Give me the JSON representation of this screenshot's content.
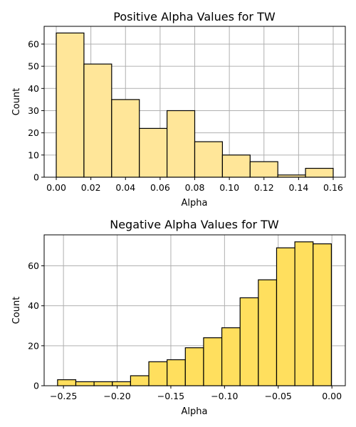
{
  "chart_data": [
    {
      "type": "bar",
      "title": "Positive Alpha Values for TW",
      "xlabel": "Alpha",
      "ylabel": "Count",
      "xlim": [
        -0.007,
        0.167
      ],
      "ylim": [
        0,
        68
      ],
      "xticks": [
        0.0,
        0.02,
        0.04,
        0.06,
        0.08,
        0.1,
        0.12,
        0.14,
        0.16
      ],
      "xtick_labels": [
        "0.00",
        "0.02",
        "0.04",
        "0.06",
        "0.08",
        "0.10",
        "0.12",
        "0.14",
        "0.16"
      ],
      "yticks": [
        0,
        10,
        20,
        30,
        40,
        50,
        60
      ],
      "ytick_labels": [
        "0",
        "10",
        "20",
        "30",
        "40",
        "50",
        "60"
      ],
      "grid": true,
      "bar_color": "#ffe699",
      "bins": [
        {
          "x0": 0.0,
          "x1": 0.016,
          "count": 65
        },
        {
          "x0": 0.016,
          "x1": 0.032,
          "count": 51
        },
        {
          "x0": 0.032,
          "x1": 0.048,
          "count": 35
        },
        {
          "x0": 0.048,
          "x1": 0.064,
          "count": 22
        },
        {
          "x0": 0.064,
          "x1": 0.08,
          "count": 30
        },
        {
          "x0": 0.08,
          "x1": 0.096,
          "count": 16
        },
        {
          "x0": 0.096,
          "x1": 0.112,
          "count": 10
        },
        {
          "x0": 0.112,
          "x1": 0.128,
          "count": 7
        },
        {
          "x0": 0.128,
          "x1": 0.144,
          "count": 1
        },
        {
          "x0": 0.144,
          "x1": 0.16,
          "count": 4
        }
      ]
    },
    {
      "type": "bar",
      "title": "Negative Alpha Values for TW",
      "xlabel": "Alpha",
      "ylabel": "Count",
      "xlim": [
        -0.268,
        0.0125
      ],
      "ylim": [
        0,
        75.5
      ],
      "xticks": [
        -0.25,
        -0.2,
        -0.15,
        -0.1,
        -0.05,
        0.0
      ],
      "xtick_labels": [
        "−0.25",
        "−0.20",
        "−0.15",
        "−0.10",
        "−0.05",
        "0.00"
      ],
      "yticks": [
        0,
        20,
        40,
        60
      ],
      "ytick_labels": [
        "0",
        "20",
        "40",
        "60"
      ],
      "grid": true,
      "bar_color": "#ffdf5e",
      "bins": [
        {
          "x0": -0.2555,
          "x1": -0.2385,
          "count": 3
        },
        {
          "x0": -0.2385,
          "x1": -0.2215,
          "count": 2
        },
        {
          "x0": -0.2215,
          "x1": -0.2045,
          "count": 2
        },
        {
          "x0": -0.2045,
          "x1": -0.1875,
          "count": 2
        },
        {
          "x0": -0.1875,
          "x1": -0.1705,
          "count": 5
        },
        {
          "x0": -0.1705,
          "x1": -0.1535,
          "count": 12
        },
        {
          "x0": -0.1535,
          "x1": -0.1365,
          "count": 13
        },
        {
          "x0": -0.1365,
          "x1": -0.1195,
          "count": 19
        },
        {
          "x0": -0.1195,
          "x1": -0.1025,
          "count": 24
        },
        {
          "x0": -0.1025,
          "x1": -0.0855,
          "count": 29
        },
        {
          "x0": -0.0855,
          "x1": -0.0685,
          "count": 44
        },
        {
          "x0": -0.0685,
          "x1": -0.0515,
          "count": 53
        },
        {
          "x0": -0.0515,
          "x1": -0.0345,
          "count": 69
        },
        {
          "x0": -0.0345,
          "x1": -0.0175,
          "count": 72
        },
        {
          "x0": -0.0175,
          "x1": -0.0005,
          "count": 71
        }
      ]
    }
  ]
}
